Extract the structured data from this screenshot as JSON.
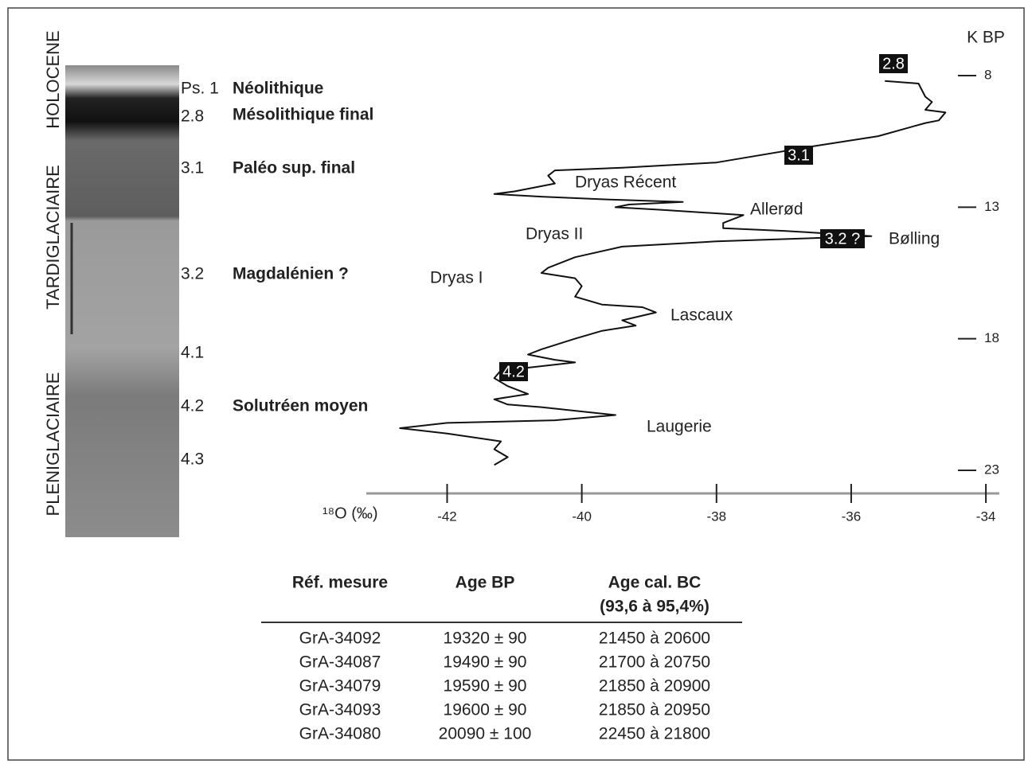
{
  "stratigraphy": {
    "periods": [
      "HOLOCENE",
      "TARDIGLACIAIRE",
      "PLENIGLACIAIRE"
    ],
    "samples": [
      "Ps. 1",
      "2.8",
      "3.1",
      "3.2",
      "4.1",
      "4.2",
      "4.3"
    ],
    "cultures": [
      "Néolithique",
      "Mésolithique final",
      "Paléo sup. final",
      "Magdalénien ?",
      "Solutréen moyen"
    ]
  },
  "chart_data": {
    "type": "line",
    "xlabel": "¹⁸O (‰)",
    "ylabel": "K BP",
    "xlim": [
      -43.2,
      -33.8
    ],
    "xticks": [
      -42,
      -40,
      -38,
      -36,
      -34
    ],
    "ylim": [
      7,
      24
    ],
    "yticks": [
      8,
      13,
      18,
      23
    ],
    "color": "#111111",
    "series": [
      {
        "x": [
          -35.5,
          -35.0,
          -34.9,
          -34.8,
          -34.9,
          -34.6,
          -34.7,
          -34.9,
          -35.6,
          -36.6,
          -38.0,
          -39.4,
          -40.4,
          -40.5,
          -40.4,
          -41.0,
          -41.3,
          -40.6,
          -39.7,
          -38.5,
          -39.3,
          -39.5,
          -38.8,
          -37.6,
          -37.9,
          -37.9,
          -37.0,
          -35.7,
          -38.0,
          -39.4,
          -40.1,
          -40.5,
          -40.6,
          -40.1,
          -40.0,
          -40.1,
          -39.7,
          -39.1,
          -38.9,
          -39.4,
          -39.2,
          -39.7,
          -40.1,
          -40.6,
          -40.8,
          -40.4,
          -40.1,
          -40.8,
          -41.2,
          -41.3,
          -41.1,
          -40.8,
          -41.3,
          -41.1,
          -40.6,
          -39.5,
          -40.4,
          -42.0,
          -42.7,
          -42.0,
          -41.2,
          -41.3,
          -41.1,
          -41.3
        ],
        "values": [
          8.2,
          8.3,
          8.8,
          9.0,
          9.3,
          9.4,
          9.7,
          9.8,
          10.3,
          10.7,
          11.3,
          11.5,
          11.6,
          11.8,
          12.1,
          12.4,
          12.5,
          12.6,
          12.7,
          12.8,
          12.9,
          13.0,
          13.1,
          13.3,
          13.6,
          13.8,
          13.9,
          14.1,
          14.3,
          14.5,
          14.9,
          15.3,
          15.5,
          15.7,
          16.0,
          16.4,
          16.7,
          16.8,
          17.0,
          17.3,
          17.5,
          17.7,
          18.0,
          18.4,
          18.6,
          18.8,
          18.9,
          19.1,
          19.2,
          19.5,
          19.8,
          20.1,
          20.3,
          20.5,
          20.6,
          20.9,
          21.1,
          21.2,
          21.4,
          21.6,
          21.9,
          22.2,
          22.5,
          22.8
        ]
      }
    ],
    "boxed_labels": [
      "2.8",
      "3.1",
      "3.2 ?",
      "4.2"
    ],
    "annotations": [
      "Dryas Récent",
      "Allerød",
      "Bølling",
      "Dryas II",
      "Dryas I",
      "Lascaux",
      "Laugerie"
    ]
  },
  "table": {
    "headers": [
      "Réf. mesure",
      "Age BP",
      [
        "Age cal. BC",
        "(93,6 à 95,4%)"
      ]
    ],
    "rows": [
      [
        "GrA-34092",
        "19320 ± 90",
        "21450 à 20600"
      ],
      [
        "GrA-34087",
        "19490 ± 90",
        "21700 à 20750"
      ],
      [
        "GrA-34079",
        "19590 ± 90",
        "21850 à 20900"
      ],
      [
        "GrA-34093",
        "19600 ± 90",
        "21850 à 20950"
      ],
      [
        "GrA-34080",
        "20090 ± 100",
        "22450 à 21800"
      ]
    ]
  }
}
